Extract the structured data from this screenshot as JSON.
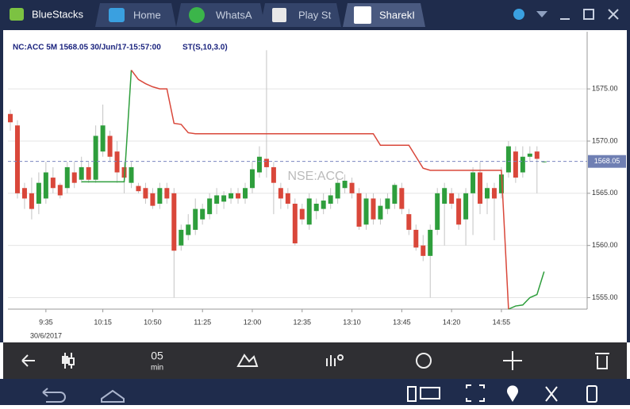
{
  "ui": {
    "app": "BlueStacks",
    "tabs": [
      "Home",
      "WhatsA",
      "Play St",
      "SharekI"
    ],
    "toolbar": {
      "interval": "05",
      "unit": "min"
    }
  },
  "chart_data": {
    "type": "candlestick",
    "title": "NC:ACC 5M 1568.05 30/Jun/17-15:57:00",
    "indicator": "ST(S,10,3.0)",
    "watermark": "NSE:ACC",
    "date_label": "30/6/2017",
    "categories": [
      null,
      null,
      null,
      null,
      null,
      "9:35",
      null,
      null,
      null,
      null,
      null,
      null,
      null,
      "10:15",
      null,
      null,
      null,
      null,
      null,
      null,
      "10:50",
      null,
      null,
      null,
      null,
      null,
      null,
      "11:25",
      null,
      null,
      null,
      null,
      null,
      null,
      "12:00",
      null,
      null,
      null,
      null,
      null,
      null,
      "12:35",
      null,
      null,
      null,
      null,
      null,
      null,
      "13:10",
      null,
      null,
      null,
      null,
      null,
      null,
      "13:45",
      null,
      null,
      null,
      null,
      null,
      null,
      "14:20",
      null,
      null,
      null,
      null,
      null,
      null,
      "14:55",
      null,
      null,
      null,
      null,
      null,
      null
    ],
    "open": [
      1572.6,
      1571.5,
      1565.5,
      1565,
      1564,
      1564.5,
      1566.5,
      1565.8,
      1565.5,
      1567,
      1566.3,
      1567.5,
      1566.3,
      1569,
      1570.5,
      1569,
      1567.5,
      1566,
      1565.7,
      1565.5,
      1565,
      1564,
      1565.5,
      1565,
      1560,
      1561,
      1561.5,
      1562.5,
      1563,
      1564,
      1564.2,
      1564.5,
      1565,
      1564.5,
      1565.5,
      1567,
      1568.3,
      1567.5,
      1565.5,
      1565,
      1564,
      1563.5,
      1562,
      1563.3,
      1563.5,
      1564,
      1564.5,
      1565.5,
      1566,
      1565,
      1562,
      1564.5,
      1562.5,
      1563.5,
      1564,
      1565.5,
      1563,
      1561.5,
      1560,
      1559,
      1561.5,
      1564,
      1565,
      1564.5,
      1562.5,
      1565,
      1567,
      1564.5,
      1565.5,
      1565,
      1567,
      1569,
      1567,
      1568.5,
      1569,
      1568
    ],
    "high": [
      1573,
      1572,
      1566,
      1566.5,
      1567,
      1568,
      1567.5,
      1566,
      1568,
      1568,
      1568.5,
      1568,
      1571.5,
      1573.5,
      1571,
      1570,
      1568,
      1568,
      1566,
      1566,
      1565.5,
      1566,
      1566,
      1565.5,
      1562,
      1563,
      1564.5,
      1564,
      1565,
      1565.5,
      1565.2,
      1565.5,
      1565.5,
      1566,
      1568,
      1569.5,
      1578.7,
      1568,
      1566,
      1565.5,
      1564.5,
      1564,
      1565,
      1564.5,
      1565,
      1565.5,
      1566.5,
      1566.8,
      1566.5,
      1565.5,
      1565,
      1565,
      1564.5,
      1565,
      1566,
      1566,
      1563.5,
      1562,
      1561,
      1562,
      1565.5,
      1566,
      1565.5,
      1565,
      1565.5,
      1567.5,
      1568,
      1566,
      1566,
      1567.5,
      1570,
      1569.5,
      1569.5,
      1569.5,
      1569.5,
      1568.1
    ],
    "low": [
      1571,
      1564.5,
      1563.5,
      1562.5,
      1563,
      1564,
      1565,
      1564.5,
      1565,
      1565.5,
      1566,
      1566,
      1566,
      1568.5,
      1568,
      1566,
      1565,
      1565.5,
      1565,
      1564,
      1563.5,
      1563.5,
      1564,
      1555,
      1559.5,
      1560.5,
      1561,
      1562,
      1562.5,
      1563,
      1563.5,
      1564,
      1564,
      1564,
      1565,
      1566.5,
      1566.5,
      1563,
      1563.5,
      1563.5,
      1560,
      1562,
      1561.5,
      1562.5,
      1563,
      1563.5,
      1564,
      1565,
      1564.5,
      1561.5,
      1561.5,
      1562,
      1562,
      1563,
      1563.5,
      1563,
      1561,
      1559.5,
      1558.5,
      1555,
      1561,
      1560,
      1563.5,
      1561.5,
      1560,
      1561,
      1563,
      1563,
      1560.5,
      1564.5,
      1566.5,
      1566,
      1566.5,
      1568,
      1565,
      1567.9
    ],
    "close": [
      1571.8,
      1565,
      1564.5,
      1563.5,
      1566,
      1567,
      1565.5,
      1564.8,
      1567.5,
      1566,
      1567.5,
      1566.3,
      1570.5,
      1571.5,
      1568.5,
      1567,
      1566.5,
      1567.5,
      1565.2,
      1564.5,
      1563.8,
      1565.5,
      1564.5,
      1559.5,
      1561.5,
      1562,
      1563.5,
      1563.5,
      1564.5,
      1564.8,
      1564.8,
      1565,
      1564.5,
      1565.5,
      1567.3,
      1568.5,
      1567.5,
      1566,
      1564.5,
      1564,
      1560.2,
      1562.5,
      1564.5,
      1564,
      1564.3,
      1564.8,
      1566,
      1566.2,
      1565,
      1561.8,
      1564.5,
      1562.5,
      1563.8,
      1564.5,
      1565.8,
      1563.5,
      1561.5,
      1559.8,
      1559,
      1561.5,
      1565,
      1565.5,
      1564,
      1562,
      1565,
      1567,
      1564,
      1565.5,
      1564.5,
      1566.8,
      1569.5,
      1566.5,
      1568.5,
      1568.8,
      1568.3,
      1568.05
    ],
    "up_color": "#2e9e3c",
    "down_color": "#d9473a",
    "series": [
      {
        "name": "ST up",
        "color": "#2e9e3c",
        "values": [
          null,
          null,
          null,
          null,
          null,
          null,
          null,
          null,
          null,
          null,
          1566.1,
          1566.1,
          1566.1,
          1566.1,
          1566.1,
          1566.1,
          1566.1,
          1576.8,
          null,
          null,
          null,
          null,
          null,
          null,
          null,
          null,
          null,
          null,
          null,
          null,
          null,
          null,
          null,
          null,
          null,
          null,
          null,
          null,
          null,
          null,
          null,
          null,
          null,
          null,
          null,
          null,
          null,
          null,
          null,
          null,
          null,
          null,
          null,
          null,
          null,
          null,
          null,
          null,
          null,
          null,
          null,
          null,
          null,
          null,
          null,
          null,
          null,
          null,
          null,
          null,
          1553.9,
          1554.2,
          1554.3,
          1555,
          1555.3,
          1557.5
        ]
      },
      {
        "name": "ST down",
        "color": "#d9473a",
        "values": [
          null,
          null,
          null,
          null,
          null,
          null,
          null,
          null,
          null,
          null,
          null,
          null,
          null,
          null,
          null,
          null,
          null,
          1576.8,
          1575.9,
          1575.5,
          1575.2,
          1575,
          1575,
          1571.7,
          1571.6,
          1570.8,
          1570.7,
          1570.7,
          1570.7,
          1570.7,
          1570.7,
          1570.7,
          1570.7,
          1570.7,
          1570.7,
          1570.7,
          1570.7,
          1570.7,
          1570.7,
          1570.7,
          1570.7,
          1570.7,
          1570.7,
          1570.7,
          1570.7,
          1570.7,
          1570.7,
          1570.7,
          1570.7,
          1570.7,
          1570.7,
          1570.7,
          1569.6,
          1569.6,
          1569.6,
          1569.6,
          1569.6,
          1568.5,
          1567.4,
          1567.2,
          1567.2,
          1567.2,
          1567.2,
          1567.2,
          1567.2,
          1567.2,
          1567.2,
          1567.2,
          1567.2,
          1567.2,
          1553.9,
          null,
          null,
          null,
          null,
          null
        ]
      }
    ],
    "current_price": 1568.05,
    "ylim": [
      1553.9,
      1580.1
    ],
    "yticks": [
      {
        "value": 1555,
        "label": "1555.00"
      },
      {
        "value": 1560,
        "label": "1560.00"
      },
      {
        "value": 1565,
        "label": "1565.00"
      },
      {
        "value": 1570,
        "label": "1570.00"
      },
      {
        "value": 1575,
        "label": "1575.00"
      }
    ],
    "grid": true
  }
}
